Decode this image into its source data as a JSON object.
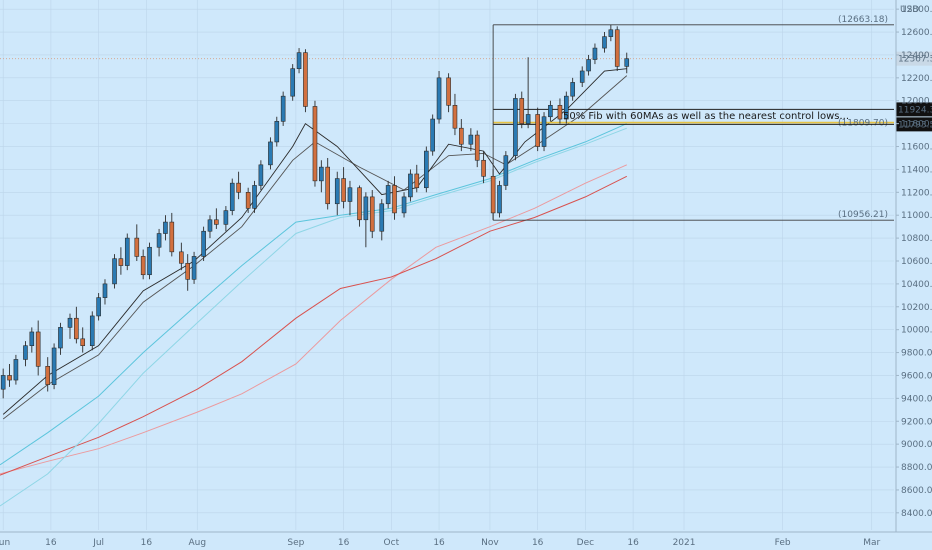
{
  "chart_data": {
    "type": "candlestick",
    "currency_label": "USD",
    "x_ticks": [
      "Jun",
      "16",
      "Jul",
      "16",
      "Aug",
      "Sep",
      "16",
      "Oct",
      "16",
      "Nov",
      "16",
      "Dec",
      "16",
      "2021",
      "Feb",
      "Mar"
    ],
    "x_tick_dates": [
      "2020-06-01",
      "2020-06-16",
      "2020-07-01",
      "2020-07-16",
      "2020-08-01",
      "2020-09-01",
      "2020-09-16",
      "2020-10-01",
      "2020-10-16",
      "2020-11-01",
      "2020-11-16",
      "2020-12-01",
      "2020-12-16",
      "2021-01-01",
      "2021-02-01",
      "2021-03-01"
    ],
    "y_ticks": [
      8400,
      8600,
      8800,
      9000,
      9200,
      9400,
      9600,
      9800,
      10000,
      10200,
      10400,
      10600,
      10800,
      11000,
      11200,
      11400,
      11600,
      11800,
      12000,
      12200,
      12400,
      12600,
      12800
    ],
    "y_tick_labels": [
      "8400.00",
      "8600.00",
      "8800.00",
      "9000.00",
      "9200.00",
      "9400.00",
      "9600.00",
      "9800.00",
      "10000.00",
      "10200.00",
      "10400.00",
      "10600.00",
      "10800.00",
      "11000.00",
      "11200.00",
      "11400.00",
      "11600.00",
      "11800.00",
      "12000.00",
      "12200.00",
      "12400.00",
      "12600.00",
      "12800.00"
    ],
    "ylim": [
      8250,
      12880
    ],
    "xlim": [
      "2020-05-31",
      "2021-03-08"
    ],
    "colors": {
      "up": "#2a7ab3",
      "down": "#d2703f",
      "ma_black": "#2b2b2b",
      "ma_cyan": "#5cc5dc",
      "ma_red": "#d8524f",
      "ma_pink": "#eb9a9e",
      "fib": "#e7c343",
      "grid": "#bcd5ea"
    },
    "price_levels": [
      {
        "label": "12663.18",
        "value": 12663.18,
        "kind": "bracket"
      },
      {
        "label": "12367.38",
        "value": 12367.38,
        "kind": "current"
      },
      {
        "label": "11924.31",
        "value": 11924.31,
        "kind": "tag"
      },
      {
        "label": "11809.70",
        "value": 11809.7,
        "kind": "fib"
      },
      {
        "label": "11793.54",
        "value": 11793.54,
        "kind": "tag"
      },
      {
        "label": "10956.21",
        "value": 10956.21,
        "kind": "bracket"
      }
    ],
    "annotation": "50% Fib with 60MAs as well as the nearest control lows...",
    "ohlc": [
      {
        "d": "2020-06-01",
        "o": 9480,
        "h": 9660,
        "l": 9400,
        "c": 9600
      },
      {
        "d": "2020-06-03",
        "o": 9600,
        "h": 9700,
        "l": 9500,
        "c": 9560
      },
      {
        "d": "2020-06-05",
        "o": 9560,
        "h": 9780,
        "l": 9520,
        "c": 9740
      },
      {
        "d": "2020-06-08",
        "o": 9740,
        "h": 9900,
        "l": 9680,
        "c": 9860
      },
      {
        "d": "2020-06-10",
        "o": 9860,
        "h": 10020,
        "l": 9800,
        "c": 9980
      },
      {
        "d": "2020-06-12",
        "o": 9980,
        "h": 10080,
        "l": 9600,
        "c": 9680
      },
      {
        "d": "2020-06-15",
        "o": 9680,
        "h": 9760,
        "l": 9460,
        "c": 9520
      },
      {
        "d": "2020-06-17",
        "o": 9520,
        "h": 9880,
        "l": 9480,
        "c": 9840
      },
      {
        "d": "2020-06-19",
        "o": 9840,
        "h": 10060,
        "l": 9780,
        "c": 10020
      },
      {
        "d": "2020-06-22",
        "o": 10020,
        "h": 10140,
        "l": 9920,
        "c": 10100
      },
      {
        "d": "2020-06-24",
        "o": 10100,
        "h": 10200,
        "l": 9880,
        "c": 9920
      },
      {
        "d": "2020-06-26",
        "o": 9920,
        "h": 10020,
        "l": 9800,
        "c": 9860
      },
      {
        "d": "2020-06-29",
        "o": 9860,
        "h": 10160,
        "l": 9820,
        "c": 10120
      },
      {
        "d": "2020-07-01",
        "o": 10120,
        "h": 10320,
        "l": 10080,
        "c": 10280
      },
      {
        "d": "2020-07-03",
        "o": 10280,
        "h": 10440,
        "l": 10220,
        "c": 10400
      },
      {
        "d": "2020-07-06",
        "o": 10400,
        "h": 10660,
        "l": 10360,
        "c": 10620
      },
      {
        "d": "2020-07-08",
        "o": 10620,
        "h": 10720,
        "l": 10480,
        "c": 10560
      },
      {
        "d": "2020-07-10",
        "o": 10560,
        "h": 10840,
        "l": 10520,
        "c": 10800
      },
      {
        "d": "2020-07-13",
        "o": 10800,
        "h": 10920,
        "l": 10600,
        "c": 10640
      },
      {
        "d": "2020-07-15",
        "o": 10640,
        "h": 10700,
        "l": 10440,
        "c": 10480
      },
      {
        "d": "2020-07-17",
        "o": 10480,
        "h": 10760,
        "l": 10440,
        "c": 10720
      },
      {
        "d": "2020-07-20",
        "o": 10720,
        "h": 10880,
        "l": 10640,
        "c": 10840
      },
      {
        "d": "2020-07-22",
        "o": 10840,
        "h": 11000,
        "l": 10780,
        "c": 10940
      },
      {
        "d": "2020-07-24",
        "o": 10940,
        "h": 11020,
        "l": 10640,
        "c": 10680
      },
      {
        "d": "2020-07-27",
        "o": 10680,
        "h": 10760,
        "l": 10520,
        "c": 10580
      },
      {
        "d": "2020-07-29",
        "o": 10580,
        "h": 10660,
        "l": 10340,
        "c": 10440
      },
      {
        "d": "2020-07-31",
        "o": 10440,
        "h": 10680,
        "l": 10400,
        "c": 10640
      },
      {
        "d": "2020-08-03",
        "o": 10640,
        "h": 10900,
        "l": 10600,
        "c": 10860
      },
      {
        "d": "2020-08-05",
        "o": 10860,
        "h": 11000,
        "l": 10800,
        "c": 10960
      },
      {
        "d": "2020-08-07",
        "o": 10960,
        "h": 11060,
        "l": 10880,
        "c": 10920
      },
      {
        "d": "2020-08-10",
        "o": 10920,
        "h": 11080,
        "l": 10860,
        "c": 11040
      },
      {
        "d": "2020-08-12",
        "o": 11040,
        "h": 11320,
        "l": 11000,
        "c": 11280
      },
      {
        "d": "2020-08-14",
        "o": 11280,
        "h": 11380,
        "l": 11140,
        "c": 11200
      },
      {
        "d": "2020-08-17",
        "o": 11200,
        "h": 11240,
        "l": 11020,
        "c": 11060
      },
      {
        "d": "2020-08-19",
        "o": 11060,
        "h": 11300,
        "l": 11020,
        "c": 11260
      },
      {
        "d": "2020-08-21",
        "o": 11260,
        "h": 11480,
        "l": 11220,
        "c": 11440
      },
      {
        "d": "2020-08-24",
        "o": 11440,
        "h": 11680,
        "l": 11400,
        "c": 11640
      },
      {
        "d": "2020-08-26",
        "o": 11640,
        "h": 11860,
        "l": 11600,
        "c": 11820
      },
      {
        "d": "2020-08-28",
        "o": 11820,
        "h": 12080,
        "l": 11780,
        "c": 12040
      },
      {
        "d": "2020-08-31",
        "o": 12040,
        "h": 12320,
        "l": 12000,
        "c": 12280
      },
      {
        "d": "2020-09-02",
        "o": 12280,
        "h": 12460,
        "l": 12240,
        "c": 12420
      },
      {
        "d": "2020-09-04",
        "o": 12420,
        "h": 12450,
        "l": 11900,
        "c": 11950
      },
      {
        "d": "2020-09-07",
        "o": 11950,
        "h": 12000,
        "l": 11250,
        "c": 11300
      },
      {
        "d": "2020-09-09",
        "o": 11300,
        "h": 11480,
        "l": 11200,
        "c": 11420
      },
      {
        "d": "2020-09-11",
        "o": 11420,
        "h": 11500,
        "l": 11050,
        "c": 11100
      },
      {
        "d": "2020-09-14",
        "o": 11100,
        "h": 11380,
        "l": 11000,
        "c": 11320
      },
      {
        "d": "2020-09-16",
        "o": 11320,
        "h": 11420,
        "l": 11060,
        "c": 11120
      },
      {
        "d": "2020-09-18",
        "o": 11120,
        "h": 11300,
        "l": 11000,
        "c": 11240
      },
      {
        "d": "2020-09-21",
        "o": 11240,
        "h": 11260,
        "l": 10900,
        "c": 10960
      },
      {
        "d": "2020-09-23",
        "o": 10960,
        "h": 11200,
        "l": 10720,
        "c": 11160
      },
      {
        "d": "2020-09-25",
        "o": 11160,
        "h": 11220,
        "l": 10800,
        "c": 10860
      },
      {
        "d": "2020-09-28",
        "o": 10860,
        "h": 11140,
        "l": 10780,
        "c": 11100
      },
      {
        "d": "2020-09-30",
        "o": 11100,
        "h": 11300,
        "l": 11060,
        "c": 11260
      },
      {
        "d": "2020-10-02",
        "o": 11260,
        "h": 11340,
        "l": 10960,
        "c": 11020
      },
      {
        "d": "2020-10-05",
        "o": 11020,
        "h": 11200,
        "l": 10980,
        "c": 11160
      },
      {
        "d": "2020-10-07",
        "o": 11160,
        "h": 11400,
        "l": 11120,
        "c": 11360
      },
      {
        "d": "2020-10-09",
        "o": 11360,
        "h": 11440,
        "l": 11200,
        "c": 11240
      },
      {
        "d": "2020-10-12",
        "o": 11240,
        "h": 11600,
        "l": 11200,
        "c": 11560
      },
      {
        "d": "2020-10-14",
        "o": 11560,
        "h": 11880,
        "l": 11520,
        "c": 11840
      },
      {
        "d": "2020-10-16",
        "o": 11840,
        "h": 12260,
        "l": 11800,
        "c": 12200
      },
      {
        "d": "2020-10-19",
        "o": 12200,
        "h": 12240,
        "l": 11900,
        "c": 11960
      },
      {
        "d": "2020-10-21",
        "o": 11960,
        "h": 12060,
        "l": 11700,
        "c": 11760
      },
      {
        "d": "2020-10-23",
        "o": 11760,
        "h": 11840,
        "l": 11560,
        "c": 11620
      },
      {
        "d": "2020-10-26",
        "o": 11620,
        "h": 11760,
        "l": 11560,
        "c": 11700
      },
      {
        "d": "2020-10-28",
        "o": 11700,
        "h": 11740,
        "l": 11420,
        "c": 11480
      },
      {
        "d": "2020-10-30",
        "o": 11480,
        "h": 11560,
        "l": 11280,
        "c": 11340
      },
      {
        "d": "2020-11-02",
        "o": 11340,
        "h": 11400,
        "l": 10960,
        "c": 11020
      },
      {
        "d": "2020-11-04",
        "o": 11020,
        "h": 11300,
        "l": 10980,
        "c": 11260
      },
      {
        "d": "2020-11-06",
        "o": 11260,
        "h": 11560,
        "l": 11220,
        "c": 11520
      },
      {
        "d": "2020-11-09",
        "o": 11520,
        "h": 12060,
        "l": 11480,
        "c": 12020
      },
      {
        "d": "2020-11-11",
        "o": 12020,
        "h": 12080,
        "l": 11760,
        "c": 11800
      },
      {
        "d": "2020-11-13",
        "o": 11800,
        "h": 12380,
        "l": 11760,
        "c": 11880
      },
      {
        "d": "2020-11-16",
        "o": 11880,
        "h": 11940,
        "l": 11560,
        "c": 11600
      },
      {
        "d": "2020-11-18",
        "o": 11600,
        "h": 11900,
        "l": 11560,
        "c": 11860
      },
      {
        "d": "2020-11-20",
        "o": 11860,
        "h": 12000,
        "l": 11820,
        "c": 11960
      },
      {
        "d": "2020-11-23",
        "o": 11960,
        "h": 12020,
        "l": 11800,
        "c": 11840
      },
      {
        "d": "2020-11-25",
        "o": 11840,
        "h": 12080,
        "l": 11800,
        "c": 12040
      },
      {
        "d": "2020-11-27",
        "o": 12040,
        "h": 12200,
        "l": 12000,
        "c": 12160
      },
      {
        "d": "2020-11-30",
        "o": 12160,
        "h": 12300,
        "l": 12120,
        "c": 12260
      },
      {
        "d": "2020-12-02",
        "o": 12260,
        "h": 12400,
        "l": 12220,
        "c": 12360
      },
      {
        "d": "2020-12-04",
        "o": 12360,
        "h": 12500,
        "l": 12320,
        "c": 12460
      },
      {
        "d": "2020-12-07",
        "o": 12460,
        "h": 12600,
        "l": 12420,
        "c": 12560
      },
      {
        "d": "2020-12-09",
        "o": 12560,
        "h": 12663,
        "l": 12520,
        "c": 12620
      },
      {
        "d": "2020-12-11",
        "o": 12620,
        "h": 12650,
        "l": 12260,
        "c": 12300
      },
      {
        "d": "2020-12-14",
        "o": 12300,
        "h": 12420,
        "l": 12240,
        "c": 12367
      }
    ],
    "ma_black_fast": [
      [
        "2020-06-01",
        9260
      ],
      [
        "2020-06-15",
        9600
      ],
      [
        "2020-07-01",
        9860
      ],
      [
        "2020-07-15",
        10340
      ],
      [
        "2020-07-31",
        10600
      ],
      [
        "2020-08-15",
        10980
      ],
      [
        "2020-08-31",
        11600
      ],
      [
        "2020-09-04",
        11800
      ],
      [
        "2020-09-14",
        11600
      ],
      [
        "2020-09-28",
        11180
      ],
      [
        "2020-10-09",
        11240
      ],
      [
        "2020-10-19",
        11620
      ],
      [
        "2020-10-30",
        11560
      ],
      [
        "2020-11-04",
        11360
      ],
      [
        "2020-11-12",
        11640
      ],
      [
        "2020-11-25",
        11920
      ],
      [
        "2020-12-07",
        12260
      ],
      [
        "2020-12-14",
        12280
      ]
    ],
    "ma_black_slow": [
      [
        "2020-06-01",
        9220
      ],
      [
        "2020-06-15",
        9520
      ],
      [
        "2020-07-01",
        9780
      ],
      [
        "2020-07-15",
        10240
      ],
      [
        "2020-07-31",
        10560
      ],
      [
        "2020-08-15",
        10900
      ],
      [
        "2020-08-31",
        11480
      ],
      [
        "2020-09-07",
        11640
      ],
      [
        "2020-09-21",
        11420
      ],
      [
        "2020-10-05",
        11220
      ],
      [
        "2020-10-19",
        11520
      ],
      [
        "2020-10-30",
        11540
      ],
      [
        "2020-11-06",
        11440
      ],
      [
        "2020-11-16",
        11620
      ],
      [
        "2020-11-30",
        11880
      ],
      [
        "2020-12-14",
        12220
      ]
    ],
    "ma_cyan": [
      [
        "2020-05-31",
        8820
      ],
      [
        "2020-06-15",
        9100
      ],
      [
        "2020-07-01",
        9420
      ],
      [
        "2020-07-15",
        9800
      ],
      [
        "2020-08-01",
        10220
      ],
      [
        "2020-08-15",
        10560
      ],
      [
        "2020-09-01",
        10940
      ],
      [
        "2020-09-15",
        11000
      ],
      [
        "2020-10-01",
        11060
      ],
      [
        "2020-10-15",
        11180
      ],
      [
        "2020-11-01",
        11320
      ],
      [
        "2020-11-15",
        11480
      ],
      [
        "2020-12-01",
        11640
      ],
      [
        "2020-12-14",
        11800
      ]
    ],
    "ma_cyan_light": [
      [
        "2020-05-31",
        8460
      ],
      [
        "2020-06-15",
        8740
      ],
      [
        "2020-07-01",
        9180
      ],
      [
        "2020-07-15",
        9620
      ],
      [
        "2020-08-01",
        10060
      ],
      [
        "2020-08-15",
        10420
      ],
      [
        "2020-09-01",
        10840
      ],
      [
        "2020-09-15",
        10980
      ],
      [
        "2020-10-01",
        11040
      ],
      [
        "2020-10-15",
        11160
      ],
      [
        "2020-11-01",
        11300
      ],
      [
        "2020-11-15",
        11460
      ],
      [
        "2020-12-01",
        11620
      ],
      [
        "2020-12-14",
        11760
      ]
    ],
    "ma_red": [
      [
        "2020-05-31",
        8730
      ],
      [
        "2020-06-15",
        8890
      ],
      [
        "2020-07-01",
        9060
      ],
      [
        "2020-07-15",
        9240
      ],
      [
        "2020-08-01",
        9480
      ],
      [
        "2020-08-15",
        9720
      ],
      [
        "2020-09-01",
        10100
      ],
      [
        "2020-09-15",
        10360
      ],
      [
        "2020-10-01",
        10460
      ],
      [
        "2020-10-15",
        10620
      ],
      [
        "2020-11-01",
        10860
      ],
      [
        "2020-11-15",
        10980
      ],
      [
        "2020-12-01",
        11160
      ],
      [
        "2020-12-14",
        11340
      ]
    ],
    "ma_pink": [
      [
        "2020-05-31",
        8740
      ],
      [
        "2020-06-15",
        8850
      ],
      [
        "2020-07-01",
        8960
      ],
      [
        "2020-07-15",
        9100
      ],
      [
        "2020-08-01",
        9280
      ],
      [
        "2020-08-15",
        9440
      ],
      [
        "2020-09-01",
        9700
      ],
      [
        "2020-09-15",
        10080
      ],
      [
        "2020-10-01",
        10440
      ],
      [
        "2020-10-15",
        10720
      ],
      [
        "2020-11-01",
        10900
      ],
      [
        "2020-11-15",
        11060
      ],
      [
        "2020-12-01",
        11280
      ],
      [
        "2020-12-14",
        11440
      ]
    ]
  }
}
